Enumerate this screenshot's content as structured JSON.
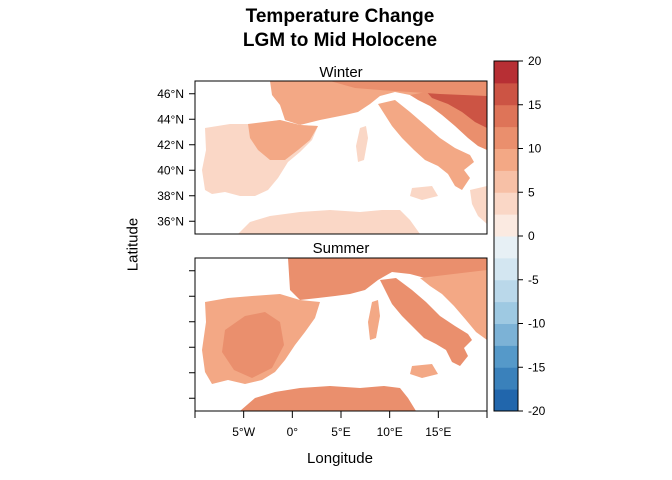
{
  "title": {
    "line1": "Temperature Change",
    "line2": "LGM to Mid Holocene"
  },
  "axes": {
    "xlabel": "Longitude",
    "ylabel": "Latitude",
    "x_ticks": [
      "5°W",
      "0°",
      "5°E",
      "10°E",
      "15°E"
    ],
    "y_ticks": [
      "46°N",
      "44°N",
      "42°N",
      "40°N",
      "38°N",
      "36°N"
    ]
  },
  "panels": [
    {
      "name": "Winter"
    },
    {
      "name": "Summer"
    }
  ],
  "colorbar": {
    "ticks": [
      "20",
      "15",
      "10",
      "5",
      "0",
      "-5",
      "-10",
      "-15",
      "-20"
    ],
    "range": [
      -20,
      20
    ],
    "step": 2.5,
    "colors": [
      "#2166ac",
      "#3a81bb",
      "#5599c9",
      "#7cb2d6",
      "#9ec9e2",
      "#bad8ea",
      "#d3e6f1",
      "#e7f0f5",
      "#fbeae1",
      "#fad7c6",
      "#f7c0a6",
      "#f3a885",
      "#ea8f6d",
      "#de7458",
      "#cc5444",
      "#b72f34"
    ]
  },
  "map_colors": {
    "sea": "#ffffff",
    "light": "#fad7c6",
    "mid": "#f3a885",
    "strong": "#ea8f6d",
    "stronger": "#de7458",
    "hot": "#cc5444",
    "cool": "#fbeae1"
  }
}
